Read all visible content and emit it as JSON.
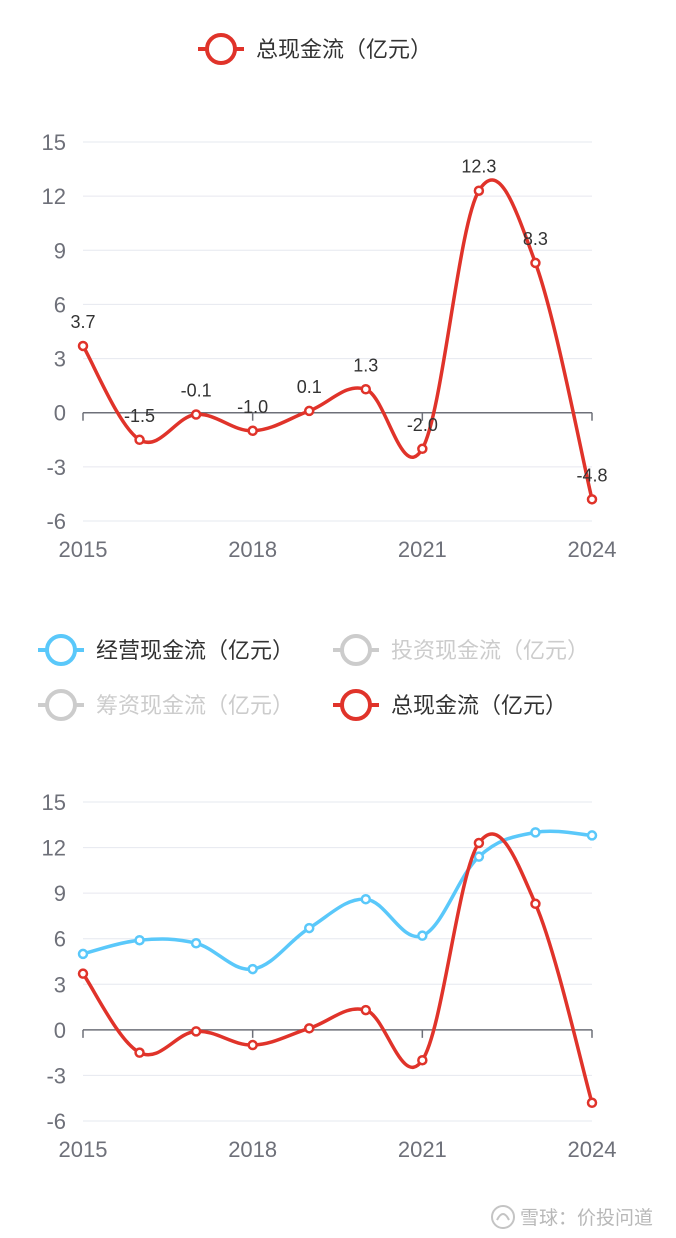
{
  "colors": {
    "operating": "#5ac8fa",
    "total": "#e0332a",
    "inactive": "#cccccc",
    "grid": "#e6e8ef",
    "axis": "#6e7079"
  },
  "chart_data": [
    {
      "type": "line",
      "x": [
        2015,
        2016,
        2017,
        2018,
        2019,
        2020,
        2021,
        2022,
        2023,
        2024
      ],
      "xticks": [
        "2015",
        "2018",
        "2021",
        "2024"
      ],
      "yticks": [
        15,
        12,
        9,
        6,
        3,
        0,
        -3,
        -6
      ],
      "ylim": [
        -6,
        15
      ],
      "grid": true,
      "legend_position": "top-center",
      "legend": [
        {
          "name": "总现金流（亿元）",
          "active": true
        }
      ],
      "series": [
        {
          "name": "总现金流（亿元）",
          "values": [
            3.7,
            -1.5,
            -0.1,
            -1.0,
            0.1,
            1.3,
            -2.0,
            12.3,
            8.3,
            -4.8
          ],
          "labels": [
            "3.7",
            "-1.5",
            "-0.1",
            "-1.0",
            "0.1",
            "1.3",
            "-2.0",
            "12.3",
            "8.3",
            "-4.8"
          ]
        }
      ]
    },
    {
      "type": "line",
      "x": [
        2015,
        2016,
        2017,
        2018,
        2019,
        2020,
        2021,
        2022,
        2023,
        2024
      ],
      "xticks": [
        "2015",
        "2018",
        "2021",
        "2024"
      ],
      "yticks": [
        15,
        12,
        9,
        6,
        3,
        0,
        -3,
        -6
      ],
      "ylim": [
        -6,
        15
      ],
      "grid": true,
      "legend_position": "top-center",
      "legend": [
        {
          "name": "经营现金流（亿元）",
          "active": true
        },
        {
          "name": "投资现金流（亿元）",
          "active": false
        },
        {
          "name": "筹资现金流（亿元）",
          "active": false
        },
        {
          "name": "总现金流（亿元）",
          "active": true
        }
      ],
      "series": [
        {
          "name": "经营现金流（亿元）",
          "values": [
            5.0,
            5.9,
            5.7,
            4.0,
            6.7,
            8.6,
            6.2,
            11.4,
            13.0,
            12.8
          ]
        },
        {
          "name": "总现金流（亿元）",
          "values": [
            3.7,
            -1.5,
            -0.1,
            -1.0,
            0.1,
            1.3,
            -2.0,
            12.3,
            8.3,
            -4.8
          ]
        }
      ]
    }
  ],
  "watermark": "雪球：价投问道"
}
